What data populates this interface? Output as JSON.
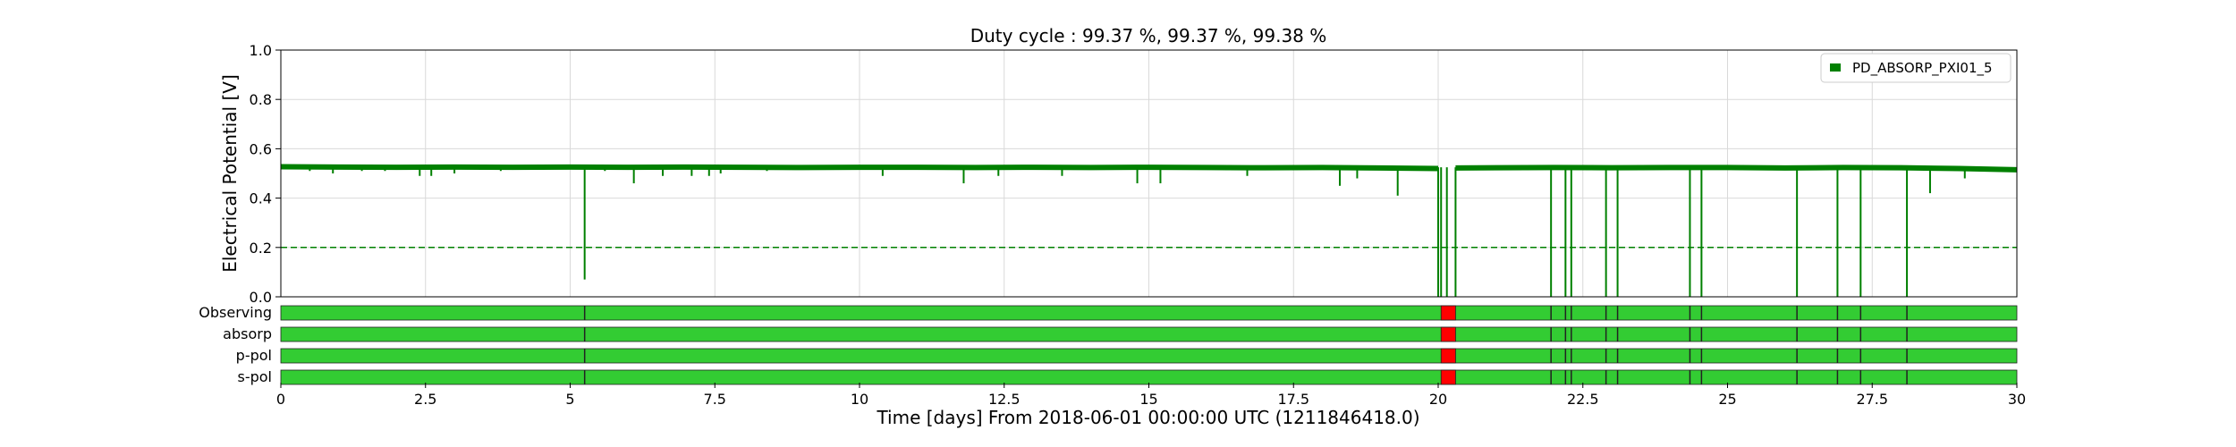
{
  "chart_data": {
    "type": "line",
    "title": "Duty cycle : 99.37 %, 99.37 %, 99.38 %",
    "xlabel": "Time [days] From 2018-06-01 00:00:00 UTC (1211846418.0)",
    "ylabel": "Electrical Potential [V]",
    "xlim": [
      0,
      30
    ],
    "ylim": [
      0,
      1.0
    ],
    "x_ticks": [
      "0",
      "2.5",
      "5",
      "7.5",
      "10",
      "12.5",
      "15",
      "17.5",
      "20",
      "22.5",
      "25",
      "27.5",
      "30"
    ],
    "y_ticks": [
      "0.0",
      "0.2",
      "0.4",
      "0.6",
      "0.8",
      "1.0"
    ],
    "grid": true,
    "legend_position": "top-right",
    "series": [
      {
        "name": "PD_ABSORP_PXI01_5",
        "color": "#008000",
        "baseline_value": 0.525,
        "x": [
          0,
          1,
          2,
          3,
          4,
          5,
          6,
          7,
          8,
          9,
          10,
          11,
          12,
          13,
          14,
          15,
          16,
          17,
          18,
          19,
          20,
          20.1,
          20.3,
          21,
          22,
          23,
          24,
          25,
          26,
          27,
          28,
          29,
          30
        ],
        "y": [
          0.527,
          0.526,
          0.525,
          0.526,
          0.525,
          0.526,
          0.525,
          0.526,
          0.525,
          0.524,
          0.525,
          0.525,
          0.524,
          0.525,
          0.524,
          0.525,
          0.524,
          0.523,
          0.524,
          0.522,
          0.52,
          0.0,
          0.522,
          0.523,
          0.524,
          0.523,
          0.524,
          0.524,
          0.522,
          0.524,
          0.523,
          0.52,
          0.515
        ],
        "dips": [
          {
            "x": 0.5,
            "y": 0.51
          },
          {
            "x": 0.9,
            "y": 0.5
          },
          {
            "x": 1.4,
            "y": 0.51
          },
          {
            "x": 1.8,
            "y": 0.51
          },
          {
            "x": 2.4,
            "y": 0.49
          },
          {
            "x": 2.6,
            "y": 0.49
          },
          {
            "x": 3.0,
            "y": 0.5
          },
          {
            "x": 3.8,
            "y": 0.51
          },
          {
            "x": 5.25,
            "y": 0.07
          },
          {
            "x": 5.6,
            "y": 0.51
          },
          {
            "x": 6.1,
            "y": 0.46
          },
          {
            "x": 6.6,
            "y": 0.49
          },
          {
            "x": 7.1,
            "y": 0.49
          },
          {
            "x": 7.4,
            "y": 0.49
          },
          {
            "x": 7.6,
            "y": 0.5
          },
          {
            "x": 8.4,
            "y": 0.51
          },
          {
            "x": 10.4,
            "y": 0.49
          },
          {
            "x": 11.8,
            "y": 0.46
          },
          {
            "x": 12.4,
            "y": 0.49
          },
          {
            "x": 13.5,
            "y": 0.49
          },
          {
            "x": 14.8,
            "y": 0.46
          },
          {
            "x": 15.2,
            "y": 0.46
          },
          {
            "x": 16.7,
            "y": 0.49
          },
          {
            "x": 18.3,
            "y": 0.45
          },
          {
            "x": 18.6,
            "y": 0.48
          },
          {
            "x": 19.3,
            "y": 0.41
          },
          {
            "x": 20.0,
            "y": 0.0
          },
          {
            "x": 20.15,
            "y": 0.0
          },
          {
            "x": 21.95,
            "y": 0.0
          },
          {
            "x": 22.2,
            "y": 0.0
          },
          {
            "x": 22.3,
            "y": 0.0
          },
          {
            "x": 22.9,
            "y": 0.0
          },
          {
            "x": 23.1,
            "y": 0.0
          },
          {
            "x": 24.35,
            "y": 0.0
          },
          {
            "x": 24.55,
            "y": 0.0
          },
          {
            "x": 26.2,
            "y": 0.0
          },
          {
            "x": 26.9,
            "y": 0.0
          },
          {
            "x": 27.3,
            "y": 0.0
          },
          {
            "x": 28.1,
            "y": 0.0
          },
          {
            "x": 28.5,
            "y": 0.42
          },
          {
            "x": 29.1,
            "y": 0.48
          }
        ]
      }
    ],
    "threshold": {
      "value": 0.2,
      "color": "#008000",
      "style": "dashed"
    },
    "flag_bars": {
      "ok_color": "#33cc33",
      "bad_color": "#ff0000",
      "edge_color": "#222222",
      "rows": [
        {
          "label": "Observing"
        },
        {
          "label": "absorp"
        },
        {
          "label": "p-pol"
        },
        {
          "label": "s-pol"
        }
      ],
      "outage_x": [
        20.05,
        20.3
      ],
      "segment_breaks": [
        5.25,
        21.95,
        22.2,
        22.3,
        22.9,
        23.1,
        24.35,
        24.55,
        26.2,
        26.9,
        27.3,
        28.1
      ]
    }
  }
}
